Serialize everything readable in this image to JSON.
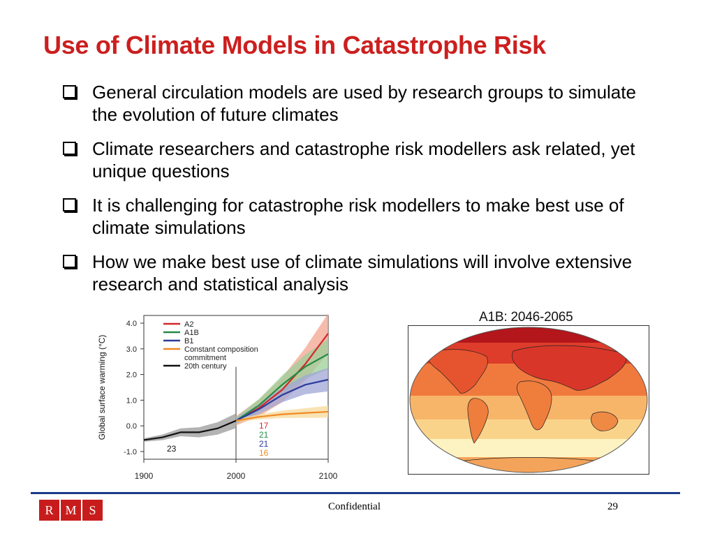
{
  "slide": {
    "title": "Use of Climate Models in Catastrophe Risk",
    "bullets": [
      "General circulation models are used by research groups to simulate the evolution of future climates",
      "Climate researchers and catastrophe risk modellers ask related, yet unique questions",
      "It is challenging for catastrophe risk modellers to make best use of climate simulations",
      "How we make best use of climate simulations will involve extensive research and statistical analysis"
    ]
  },
  "chart_data": {
    "type": "line",
    "ylabel": "Global surface warming (°C)",
    "xlabel": "",
    "xlim": [
      1900,
      2100
    ],
    "ylim": [
      -1.3,
      4.3
    ],
    "x_ticks": [
      "1900",
      "2000",
      "2100"
    ],
    "y_ticks": [
      "4.0",
      "3.0",
      "2.0",
      "1.0",
      "0.0",
      "-1.0"
    ],
    "legend_position": "top-left",
    "series": [
      {
        "name": "A2",
        "color": "#d62728",
        "band": "#f3a48f",
        "x": [
          2000,
          2025,
          2050,
          2075,
          2100
        ],
        "y": [
          0.2,
          0.7,
          1.4,
          2.4,
          3.6
        ]
      },
      {
        "name": "A1B",
        "color": "#238b45",
        "band": "#9ccf9a",
        "x": [
          2000,
          2025,
          2050,
          2075,
          2100
        ],
        "y": [
          0.2,
          0.8,
          1.6,
          2.3,
          2.8
        ]
      },
      {
        "name": "B1",
        "color": "#2b3a9a",
        "band": "#9fa6d6",
        "x": [
          2000,
          2025,
          2050,
          2075,
          2100
        ],
        "y": [
          0.2,
          0.65,
          1.2,
          1.6,
          1.8
        ]
      },
      {
        "name": "Constant composition commitment",
        "color": "#f08a24",
        "band": "#f7d99a",
        "x": [
          2000,
          2025,
          2050,
          2075,
          2100
        ],
        "y": [
          0.2,
          0.35,
          0.45,
          0.5,
          0.55
        ]
      },
      {
        "name": "20th century",
        "color": "#111111",
        "band": "#9a9a9a",
        "x": [
          1900,
          1920,
          1940,
          1960,
          1980,
          2000
        ],
        "y": [
          -0.55,
          -0.45,
          -0.25,
          -0.25,
          -0.1,
          0.2
        ]
      }
    ],
    "annotations": [
      {
        "text": "17",
        "color": "#d62728"
      },
      {
        "text": "21",
        "color": "#238b45"
      },
      {
        "text": "21",
        "color": "#2b3a9a"
      },
      {
        "text": "16",
        "color": "#f08a24"
      },
      {
        "text": "23",
        "color": "#111111"
      }
    ]
  },
  "map": {
    "title": "A1B: 2046-2065"
  },
  "footer": {
    "logo_letters": [
      "R",
      "M",
      "S"
    ],
    "center": "Confidential",
    "page": "29"
  }
}
